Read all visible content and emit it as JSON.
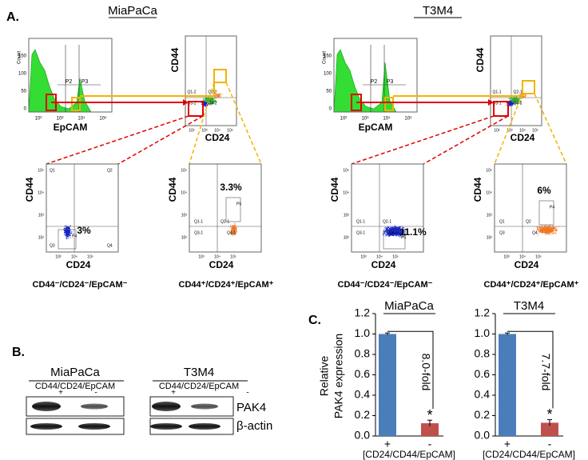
{
  "panel_a": {
    "label": "A.",
    "cell_lines": [
      {
        "name": "MiaPaCa",
        "histogram": {
          "ylabel": "Count",
          "yticks": [
            "150",
            "100",
            "50",
            "0"
          ],
          "xticks": [
            "10²",
            "10³",
            "10⁴",
            "10⁵"
          ],
          "xlabel": "EpCAM",
          "gates": [
            "P2",
            "P3"
          ]
        },
        "overview": {
          "ylabel": "CD44",
          "xlabel": "CD24",
          "xticks": [
            "10²",
            "10³",
            "10⁴",
            "10⁵"
          ],
          "quadrants": [
            "Q1-2",
            "Q2-2",
            "Q3-2",
            "Q4-2"
          ]
        },
        "subsets": [
          {
            "ylabel": "CD44",
            "xlabel": "CD24",
            "yticks": [
              "10⁵",
              "10⁴",
              "10³",
              "10²"
            ],
            "xticks": [
              "10³",
              "10⁴",
              "10⁵"
            ],
            "percent": "3%",
            "gates": [
              "Q1",
              "Q2",
              "Q3",
              "Q4",
              "P4"
            ],
            "caption": "CD44⁻/CD24⁻/EpCAM⁻"
          },
          {
            "ylabel": "CD44",
            "xlabel": "CD24",
            "yticks": [
              "10⁵",
              "10⁴",
              "10³",
              "10²"
            ],
            "xticks": [
              "10³",
              "10⁴",
              "10⁵"
            ],
            "percent": "3.3%",
            "gates": [
              "Q1-1",
              "Q2-1",
              "Q3-1",
              "Q4-1",
              "P5"
            ],
            "caption": "CD44⁺/CD24⁺/EpCAM⁺"
          }
        ]
      },
      {
        "name": "T3M4",
        "histogram": {
          "ylabel": "Count",
          "yticks": [
            "150",
            "100",
            "50",
            "0"
          ],
          "xticks": [
            "10²",
            "10³",
            "10⁴",
            "10⁵"
          ],
          "xlabel": "EpCAM",
          "gates": [
            "P2",
            "P3"
          ]
        },
        "overview": {
          "ylabel": "CD44",
          "xlabel": "CD24",
          "xticks": [
            "10²",
            "10³",
            "10⁴",
            "10⁵"
          ],
          "quadrants": [
            "Q1-1",
            "Q2-1",
            "Q3-1",
            "Q4-1"
          ]
        },
        "subsets": [
          {
            "ylabel": "CD44",
            "xlabel": "CD24",
            "yticks": [
              "10⁵",
              "10⁴",
              "10³",
              "10²"
            ],
            "xticks": [
              "10³",
              "10⁴",
              "10⁵"
            ],
            "percent": "11.1%",
            "gates": [
              "Q1-1",
              "Q2-1",
              "Q3-1",
              "Q4-1",
              "P5"
            ],
            "caption": "CD44⁻/CD24⁻/EpCAM⁻"
          },
          {
            "ylabel": "CD44",
            "xlabel": "CD24",
            "yticks": [
              "10⁵",
              "10⁴",
              "10³",
              "10²"
            ],
            "xticks": [
              "10³",
              "10⁴",
              "10⁵"
            ],
            "percent": "6%",
            "gates": [
              "Q1",
              "Q2",
              "Q3",
              "Q4",
              "P4"
            ],
            "caption": "CD44⁺/CD24⁺/EpCAM⁺"
          }
        ]
      }
    ]
  },
  "panel_b": {
    "label": "B.",
    "blots": [
      {
        "name": "MiaPaCa",
        "markers": "CD44/CD24/EpCAM",
        "lanes": [
          "+",
          "-"
        ]
      },
      {
        "name": "T3M4",
        "markers": "CD44/CD24/EpCAM",
        "lanes": [
          "+",
          "-"
        ]
      }
    ],
    "proteins": [
      "PAK4",
      "β-actin"
    ]
  },
  "panel_c": {
    "label": "C.",
    "ylabel": [
      "Relative",
      "PAK4 expression"
    ]
  },
  "chart_data": [
    {
      "type": "bar",
      "title": "MiaPaCa",
      "categories": [
        "+",
        "-"
      ],
      "values": [
        1.0,
        0.125
      ],
      "errors": [
        0.01,
        0.03
      ],
      "colors": [
        "#4a7ebb",
        "#c0504d"
      ],
      "ylim": [
        0,
        1.2
      ],
      "yticks": [
        {
          "value": 0,
          "label": "0.0"
        },
        {
          "value": 0.2,
          "label": "0.2"
        },
        {
          "value": 0.4,
          "label": "0.4"
        },
        {
          "value": 0.6,
          "label": "0.6"
        },
        {
          "value": 0.8,
          "label": "0.8"
        },
        {
          "value": 1,
          "label": "1.0"
        },
        {
          "value": 1.2,
          "label": "1.2"
        }
      ],
      "xlabel": "[CD24/CD44/EpCAM]",
      "annotations": [
        "8.0-fold",
        "*"
      ]
    },
    {
      "type": "bar",
      "title": "T3M4",
      "categories": [
        "+",
        "-"
      ],
      "values": [
        1.0,
        0.13
      ],
      "errors": [
        0.01,
        0.03
      ],
      "colors": [
        "#4a7ebb",
        "#c0504d"
      ],
      "ylim": [
        0,
        1.2
      ],
      "yticks": [
        {
          "value": 0,
          "label": "0.0"
        },
        {
          "value": 0.2,
          "label": "0.2"
        },
        {
          "value": 0.4,
          "label": "0.4"
        },
        {
          "value": 0.6,
          "label": "0.6"
        },
        {
          "value": 0.8,
          "label": "0.8"
        },
        {
          "value": 1,
          "label": "1.0"
        },
        {
          "value": 1.2,
          "label": "1.2"
        }
      ],
      "xlabel": "[CD24/CD44/EpCAM]",
      "annotations": [
        "7.7-fold",
        "*"
      ]
    }
  ]
}
